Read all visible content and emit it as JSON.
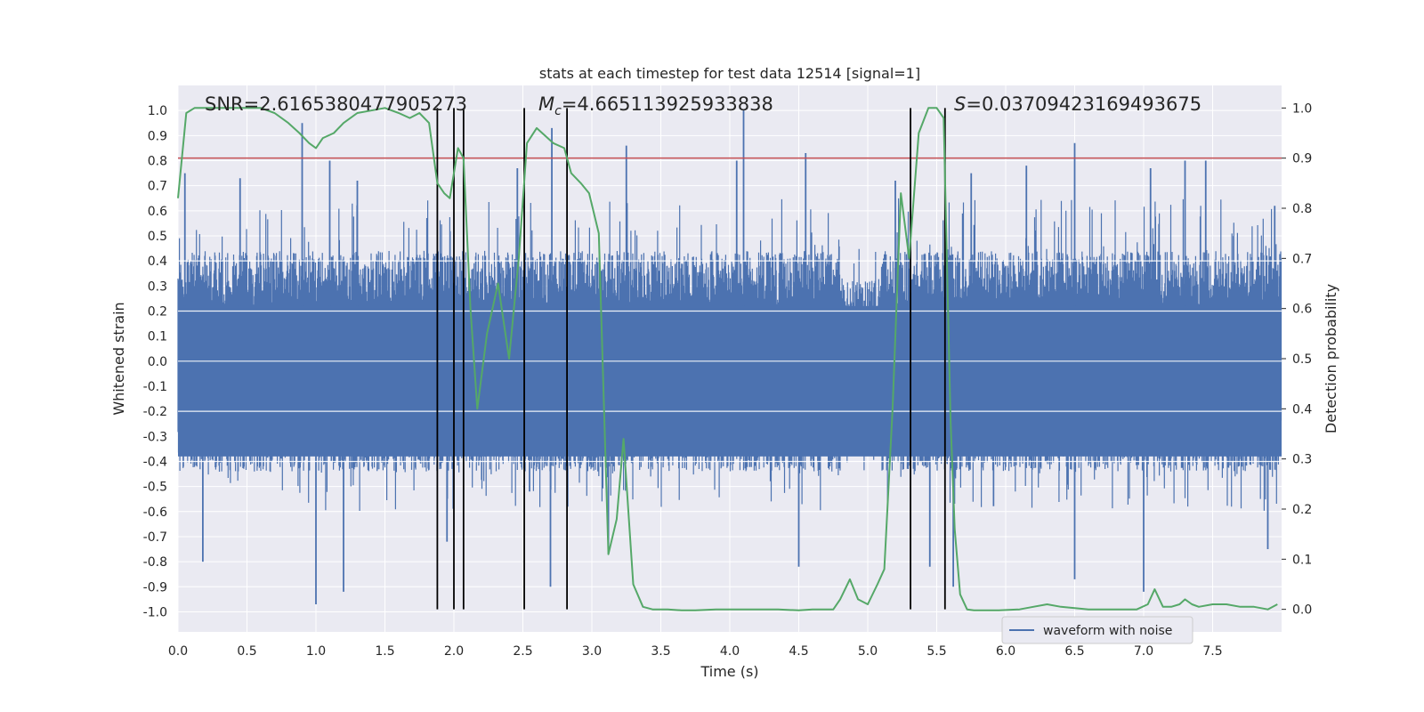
{
  "chart_data": {
    "type": "line",
    "title": "stats at each timestep for test data 12514 [signal=1]",
    "xlabel": "Time (s)",
    "ylabel_left": "Whitened strain",
    "ylabel_right": "Detection probability",
    "xlim": [
      0.0,
      8.0
    ],
    "ylim_left": [
      -1.08,
      1.1
    ],
    "ylim_right": [
      -0.045,
      1.045
    ],
    "x_ticks": [
      "0.0",
      "0.5",
      "1.0",
      "1.5",
      "2.0",
      "2.5",
      "3.0",
      "3.5",
      "4.0",
      "4.5",
      "5.0",
      "5.5",
      "6.0",
      "6.5",
      "7.0",
      "7.5"
    ],
    "x_tick_values": [
      0.0,
      0.5,
      1.0,
      1.5,
      2.0,
      2.5,
      3.0,
      3.5,
      4.0,
      4.5,
      5.0,
      5.5,
      6.0,
      6.5,
      7.0,
      7.5
    ],
    "y_left_ticks": [
      "1.0",
      "0.9",
      "0.8",
      "0.7",
      "0.6",
      "0.5",
      "0.4",
      "0.3",
      "0.2",
      "0.1",
      "0.0",
      "-0.1",
      "-0.2",
      "-0.3",
      "-0.4",
      "-0.5",
      "-0.6",
      "-0.7",
      "-0.8",
      "-0.9",
      "-1.0"
    ],
    "y_left_tick_values": [
      1.0,
      0.9,
      0.8,
      0.7,
      0.6,
      0.5,
      0.4,
      0.3,
      0.2,
      0.1,
      0.0,
      -0.1,
      -0.2,
      -0.3,
      -0.4,
      -0.5,
      -0.6,
      -0.7,
      -0.8,
      -0.9,
      -1.0
    ],
    "y_right_ticks": [
      "1.0",
      "0.9",
      "0.8",
      "0.7",
      "0.6",
      "0.5",
      "0.4",
      "0.3",
      "0.2",
      "0.1",
      "0.0"
    ],
    "y_right_tick_values": [
      1.0,
      0.9,
      0.8,
      0.7,
      0.6,
      0.5,
      0.4,
      0.3,
      0.2,
      0.1,
      0.0
    ],
    "annotations": {
      "snr": "SNR=2.6165380477905273",
      "mc_symbol": "M",
      "mc_sub": "c",
      "mc_value": "=4.665113925933838",
      "s_symbol": "S",
      "s_value": "=0.03709423169493675"
    },
    "threshold_line": {
      "y_right": 0.9,
      "color": "#c44e52"
    },
    "vertical_lines": [
      1.88,
      2.0,
      2.07,
      2.51,
      2.82,
      5.31,
      5.56
    ],
    "waveform": {
      "name": "waveform with noise",
      "color": "#4c72b0",
      "x_range": [
        0.0,
        8.0
      ],
      "typical_amplitude": 0.4,
      "peaks_positive": [
        {
          "x": 0.05,
          "y": 0.75
        },
        {
          "x": 0.45,
          "y": 0.73
        },
        {
          "x": 0.9,
          "y": 0.95
        },
        {
          "x": 1.1,
          "y": 0.8
        },
        {
          "x": 1.3,
          "y": 0.72
        },
        {
          "x": 2.46,
          "y": 0.77
        },
        {
          "x": 2.71,
          "y": 0.93
        },
        {
          "x": 3.25,
          "y": 0.86
        },
        {
          "x": 4.05,
          "y": 0.8
        },
        {
          "x": 4.1,
          "y": 1.0
        },
        {
          "x": 4.55,
          "y": 0.83
        },
        {
          "x": 5.2,
          "y": 0.72
        },
        {
          "x": 5.75,
          "y": 0.75
        },
        {
          "x": 6.15,
          "y": 0.78
        },
        {
          "x": 6.5,
          "y": 0.87
        },
        {
          "x": 7.05,
          "y": 0.77
        },
        {
          "x": 7.3,
          "y": 0.8
        },
        {
          "x": 7.45,
          "y": 0.8
        },
        {
          "x": 7.95,
          "y": 0.62
        }
      ],
      "peaks_negative": [
        {
          "x": 0.18,
          "y": -0.8
        },
        {
          "x": 1.0,
          "y": -0.97
        },
        {
          "x": 1.2,
          "y": -0.92
        },
        {
          "x": 1.95,
          "y": -0.72
        },
        {
          "x": 2.7,
          "y": -0.9
        },
        {
          "x": 3.12,
          "y": -0.77
        },
        {
          "x": 4.5,
          "y": -0.82
        },
        {
          "x": 5.45,
          "y": -0.82
        },
        {
          "x": 5.62,
          "y": -0.9
        },
        {
          "x": 6.5,
          "y": -0.87
        },
        {
          "x": 7.0,
          "y": -0.92
        },
        {
          "x": 7.9,
          "y": -0.75
        }
      ]
    },
    "detection_probability": {
      "color": "#55a868",
      "x": [
        0.0,
        0.06,
        0.12,
        0.2,
        0.3,
        0.5,
        0.6,
        0.7,
        0.8,
        0.88,
        0.95,
        1.0,
        1.05,
        1.13,
        1.2,
        1.3,
        1.4,
        1.5,
        1.6,
        1.68,
        1.75,
        1.82,
        1.88,
        1.93,
        1.97,
        2.03,
        2.07,
        2.12,
        2.17,
        2.24,
        2.32,
        2.4,
        2.47,
        2.53,
        2.6,
        2.64,
        2.72,
        2.8,
        2.85,
        2.92,
        2.98,
        3.05,
        3.12,
        3.18,
        3.23,
        3.3,
        3.37,
        3.44,
        3.55,
        3.65,
        3.75,
        3.9,
        4.0,
        4.1,
        4.2,
        4.35,
        4.5,
        4.6,
        4.75,
        4.8,
        4.87,
        4.93,
        5.0,
        5.07,
        5.12,
        5.18,
        5.24,
        5.3,
        5.37,
        5.44,
        5.5,
        5.55,
        5.6,
        5.63,
        5.67,
        5.72,
        5.77,
        5.85,
        5.95,
        6.1,
        6.2,
        6.3,
        6.4,
        6.6,
        6.8,
        6.95,
        7.03,
        7.08,
        7.14,
        7.2,
        7.26,
        7.3,
        7.35,
        7.4,
        7.5,
        7.6,
        7.7,
        7.8,
        7.9,
        7.97
      ],
      "y": [
        0.82,
        0.99,
        1.0,
        1.0,
        1.0,
        1.0,
        1.0,
        0.99,
        0.97,
        0.95,
        0.93,
        0.92,
        0.94,
        0.95,
        0.97,
        0.99,
        0.995,
        1.0,
        0.99,
        0.98,
        0.99,
        0.97,
        0.85,
        0.83,
        0.82,
        0.92,
        0.9,
        0.6,
        0.4,
        0.55,
        0.65,
        0.5,
        0.7,
        0.93,
        0.96,
        0.95,
        0.93,
        0.92,
        0.87,
        0.85,
        0.83,
        0.75,
        0.11,
        0.18,
        0.34,
        0.05,
        0.005,
        0.0,
        0.0,
        -0.002,
        -0.002,
        0.0,
        0.0,
        0.0,
        0.0,
        0.0,
        -0.002,
        0.0,
        0.0,
        0.02,
        0.06,
        0.02,
        0.01,
        0.05,
        0.08,
        0.4,
        0.83,
        0.7,
        0.95,
        1.0,
        1.0,
        0.98,
        0.38,
        0.16,
        0.03,
        0.0,
        -0.002,
        -0.002,
        -0.002,
        0.0,
        0.005,
        0.01,
        0.005,
        0.0,
        0.0,
        0.0,
        0.01,
        0.04,
        0.005,
        0.005,
        0.01,
        0.02,
        0.01,
        0.005,
        0.01,
        0.01,
        0.005,
        0.005,
        0.0,
        0.01
      ]
    },
    "grid": true,
    "legend": {
      "position": "lower-right",
      "entries": [
        "waveform with noise"
      ]
    },
    "background_color": "#eaeaf2",
    "colors": {
      "waveform": "#4c72b0",
      "probability": "#55a868",
      "threshold": "#c44e52",
      "vlines": "#000000",
      "grid": "#ffffff"
    }
  }
}
